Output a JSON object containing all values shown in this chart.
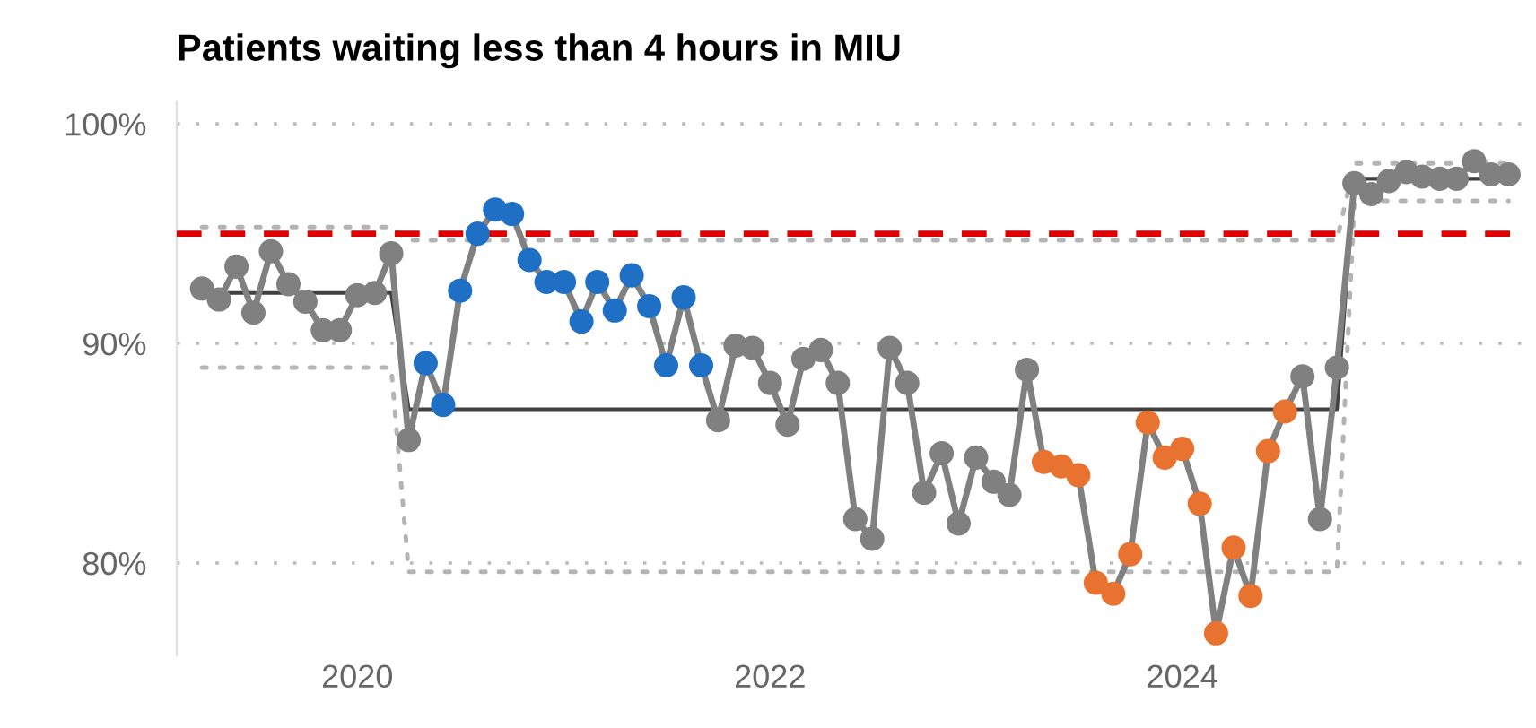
{
  "chart_data": {
    "type": "line",
    "title": "Patients waiting less than 4 hours in MIU",
    "xlim": [
      "2019-02-15",
      "2025-09-05"
    ],
    "xticks": [
      "2020",
      "2022",
      "2024"
    ],
    "ylim": [
      75.8,
      101
    ],
    "yticks": [
      {
        "value": 80,
        "label": "80%"
      },
      {
        "value": 90,
        "label": "90%"
      },
      {
        "value": 100,
        "label": "100%"
      }
    ],
    "grid": "y",
    "ref_lines": [
      {
        "axis": "y",
        "value": 95,
        "color": "#e00000",
        "line_style": "dashed"
      }
    ],
    "series": [
      {
        "color": "#404040",
        "line_style": "solid",
        "marker": "none",
        "x": [
          "2019-04",
          "2020-03",
          "2020-04",
          "2024-10",
          "2024-11",
          "2025-08"
        ],
        "values": [
          92.3,
          92.3,
          87.0,
          87.0,
          97.5,
          97.5
        ]
      },
      {
        "color": "#b4b4b4",
        "line_style": "dotted",
        "marker": "none",
        "x": [
          "2019-04",
          "2020-03",
          "2020-04",
          "2024-10",
          "2024-11",
          "2025-08"
        ],
        "values": [
          95.3,
          95.3,
          94.7,
          94.7,
          98.2,
          98.2
        ]
      },
      {
        "color": "#b4b4b4",
        "line_style": "dotted",
        "marker": "none",
        "x": [
          "2019-04",
          "2020-03",
          "2020-04",
          "2024-10",
          "2024-11",
          "2025-08"
        ],
        "values": [
          88.9,
          88.9,
          79.6,
          79.6,
          96.5,
          96.5
        ]
      },
      {
        "color": "#808080",
        "line_style": "solid",
        "marker": "circle",
        "x": [
          "2019-04",
          "2019-05",
          "2019-06",
          "2019-07",
          "2019-08",
          "2019-09",
          "2019-10",
          "2019-11",
          "2019-12",
          "2020-01",
          "2020-02",
          "2020-03",
          "2020-04",
          "2020-05",
          "2020-06",
          "2020-07",
          "2020-08",
          "2020-09",
          "2020-10",
          "2020-11",
          "2020-12",
          "2021-01",
          "2021-02",
          "2021-03",
          "2021-04",
          "2021-05",
          "2021-06",
          "2021-07",
          "2021-08",
          "2021-09",
          "2021-10",
          "2021-11",
          "2021-12",
          "2022-01",
          "2022-02",
          "2022-03",
          "2022-04",
          "2022-05",
          "2022-06",
          "2022-07",
          "2022-08",
          "2022-09",
          "2022-10",
          "2022-11",
          "2022-12",
          "2023-01",
          "2023-02",
          "2023-03",
          "2023-04",
          "2023-05",
          "2023-06",
          "2023-07",
          "2023-08",
          "2023-09",
          "2023-10",
          "2023-11",
          "2023-12",
          "2024-01",
          "2024-02",
          "2024-03",
          "2024-04",
          "2024-05",
          "2024-06",
          "2024-07",
          "2024-08",
          "2024-09",
          "2024-10",
          "2024-11",
          "2024-12",
          "2025-01",
          "2025-02",
          "2025-03",
          "2025-04",
          "2025-05",
          "2025-06",
          "2025-07",
          "2025-08"
        ],
        "values": [
          92.5,
          92.0,
          93.5,
          91.4,
          94.2,
          92.7,
          91.9,
          90.6,
          90.6,
          92.2,
          92.3,
          94.1,
          85.6,
          89.1,
          87.2,
          92.4,
          95.0,
          96.1,
          95.9,
          93.8,
          92.8,
          92.8,
          91.0,
          92.8,
          91.5,
          93.1,
          91.7,
          89.0,
          92.1,
          89.0,
          86.5,
          89.9,
          89.8,
          88.2,
          86.3,
          89.3,
          89.7,
          88.2,
          82.0,
          81.1,
          89.8,
          88.2,
          83.2,
          85.0,
          81.8,
          84.8,
          83.7,
          83.1,
          88.8,
          84.6,
          84.4,
          84.0,
          79.1,
          78.6,
          80.4,
          86.4,
          84.8,
          85.2,
          82.7,
          76.8,
          80.7,
          78.5,
          85.1,
          86.9,
          88.5,
          82.0,
          88.9,
          97.3,
          96.8,
          97.4,
          97.8,
          97.6,
          97.5,
          97.5,
          98.3,
          97.7,
          97.7
        ],
        "colors": [
          "#808080",
          "#808080",
          "#808080",
          "#808080",
          "#808080",
          "#808080",
          "#808080",
          "#808080",
          "#808080",
          "#808080",
          "#808080",
          "#808080",
          "#808080",
          "#1f6fc5",
          "#1f6fc5",
          "#1f6fc5",
          "#1f6fc5",
          "#1f6fc5",
          "#1f6fc5",
          "#1f6fc5",
          "#1f6fc5",
          "#1f6fc5",
          "#1f6fc5",
          "#1f6fc5",
          "#1f6fc5",
          "#1f6fc5",
          "#1f6fc5",
          "#1f6fc5",
          "#1f6fc5",
          "#1f6fc5",
          "#808080",
          "#808080",
          "#808080",
          "#808080",
          "#808080",
          "#808080",
          "#808080",
          "#808080",
          "#808080",
          "#808080",
          "#808080",
          "#808080",
          "#808080",
          "#808080",
          "#808080",
          "#808080",
          "#808080",
          "#808080",
          "#808080",
          "#e8722f",
          "#e8722f",
          "#e8722f",
          "#e8722f",
          "#e8722f",
          "#e8722f",
          "#e8722f",
          "#e8722f",
          "#e8722f",
          "#e8722f",
          "#e8722f",
          "#e8722f",
          "#e8722f",
          "#e8722f",
          "#e8722f",
          "#808080",
          "#808080",
          "#808080",
          "#808080",
          "#808080",
          "#808080",
          "#808080",
          "#808080",
          "#808080",
          "#808080",
          "#808080",
          "#808080",
          "#808080"
        ]
      }
    ]
  }
}
